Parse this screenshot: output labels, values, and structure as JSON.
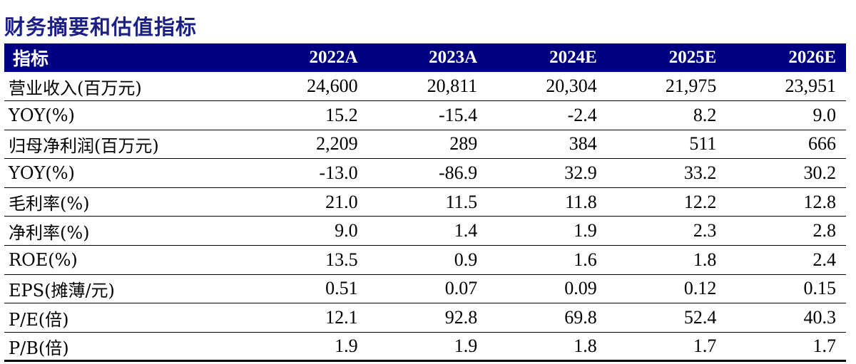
{
  "title": "财务摘要和估值指标",
  "header": {
    "label": "指标",
    "years": [
      "2022A",
      "2023A",
      "2024E",
      "2025E",
      "2026E"
    ]
  },
  "rows": [
    {
      "label": "营业收入(百万元)",
      "values": [
        "24,600",
        "20,811",
        "20,304",
        "21,975",
        "23,951"
      ]
    },
    {
      "label": "YOY(%)",
      "values": [
        "15.2",
        "-15.4",
        "-2.4",
        "8.2",
        "9.0"
      ]
    },
    {
      "label": "归母净利润(百万元)",
      "values": [
        "2,209",
        "289",
        "384",
        "511",
        "666"
      ]
    },
    {
      "label": "YOY(%)",
      "values": [
        "-13.0",
        "-86.9",
        "32.9",
        "33.2",
        "30.2"
      ]
    },
    {
      "label": "毛利率(%)",
      "values": [
        "21.0",
        "11.5",
        "11.8",
        "12.2",
        "12.8"
      ]
    },
    {
      "label": "净利率(%)",
      "values": [
        "9.0",
        "1.4",
        "1.9",
        "2.3",
        "2.8"
      ]
    },
    {
      "label": "ROE(%)",
      "values": [
        "13.5",
        "0.9",
        "1.6",
        "1.8",
        "2.4"
      ]
    },
    {
      "label": "EPS(摊薄/元)",
      "values": [
        "0.51",
        "0.07",
        "0.09",
        "0.12",
        "0.15"
      ]
    },
    {
      "label": "P/E(倍)",
      "values": [
        "12.1",
        "92.8",
        "69.8",
        "52.4",
        "40.3"
      ]
    },
    {
      "label": "P/B(倍)",
      "values": [
        "1.9",
        "1.9",
        "1.8",
        "1.7",
        "1.7"
      ]
    }
  ],
  "colors": {
    "title": "#1c1f85",
    "header_bg": "#000080",
    "header_text": "#ffffff"
  }
}
